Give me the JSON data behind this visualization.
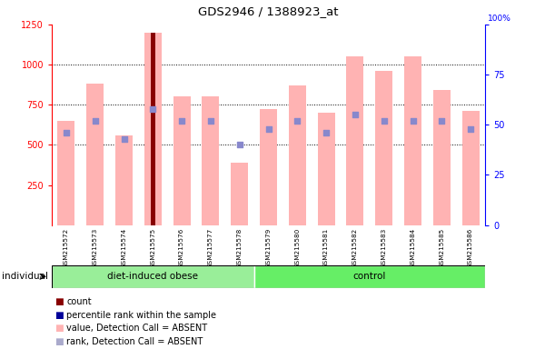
{
  "title": "GDS2946 / 1388923_at",
  "samples": [
    "GSM215572",
    "GSM215573",
    "GSM215574",
    "GSM215575",
    "GSM215576",
    "GSM215577",
    "GSM215578",
    "GSM215579",
    "GSM215580",
    "GSM215581",
    "GSM215582",
    "GSM215583",
    "GSM215584",
    "GSM215585",
    "GSM215586"
  ],
  "pink_bar_values": [
    650,
    880,
    560,
    1200,
    800,
    800,
    390,
    720,
    870,
    700,
    1050,
    960,
    1050,
    840,
    710
  ],
  "blue_square_pct": [
    46,
    52,
    43,
    58,
    52,
    52,
    40,
    48,
    52,
    46,
    55,
    52,
    52,
    52,
    48
  ],
  "red_bar_sample_idx": 3,
  "red_bar_value": 1200,
  "dark_red_bar_color": "#880000",
  "pink_bar_color": "#ffb3b3",
  "blue_square_color": "#8888cc",
  "ylim_left": [
    0,
    1250
  ],
  "ylim_right": [
    0,
    100
  ],
  "yticks_left": [
    250,
    500,
    750,
    1000,
    1250
  ],
  "yticks_right": [
    0,
    25,
    50,
    75,
    100
  ],
  "background_color": "#ffffff",
  "plot_bg_color": "#ffffff",
  "tick_bg_color": "#cccccc",
  "group_dio_color": "#99ee99",
  "group_ctrl_color": "#66ee66",
  "legend_items": [
    {
      "color": "#880000",
      "label": "count"
    },
    {
      "color": "#000099",
      "label": "percentile rank within the sample"
    },
    {
      "color": "#ffb3b3",
      "label": "value, Detection Call = ABSENT"
    },
    {
      "color": "#aaaacc",
      "label": "rank, Detection Call = ABSENT"
    }
  ],
  "dio_count": 7,
  "ctrl_count": 8
}
